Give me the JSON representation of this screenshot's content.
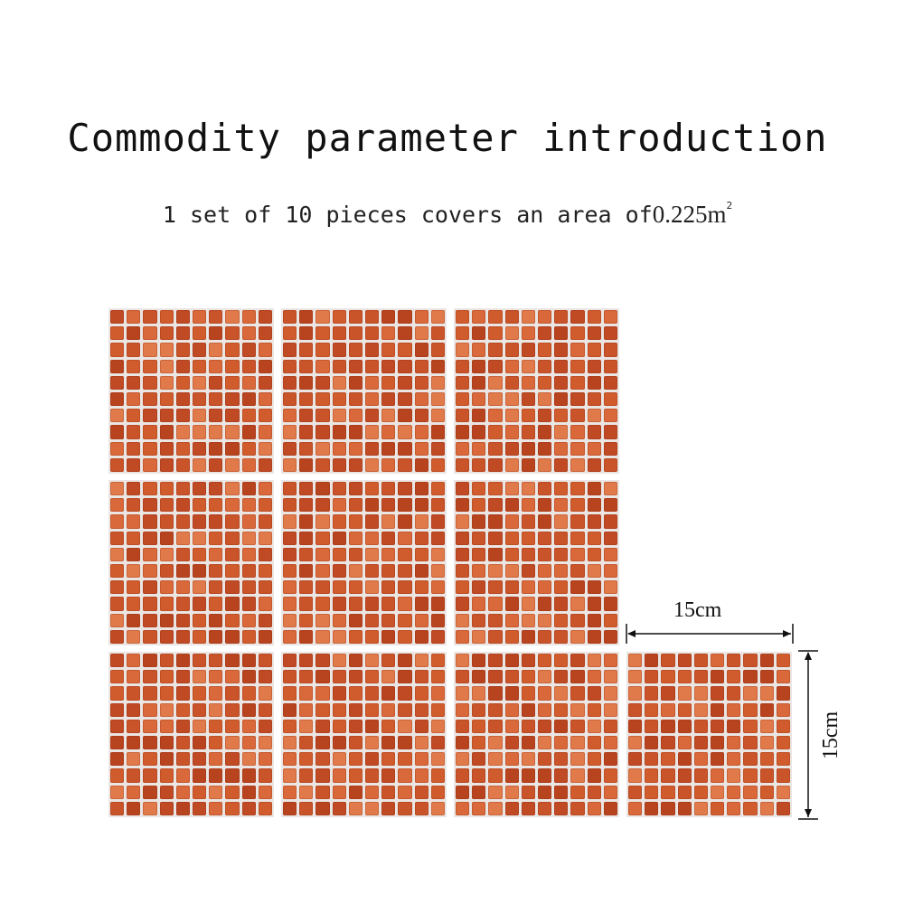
{
  "header": {
    "title": "Commodity parameter introduction",
    "subtitle_prefix": "1 set of 10 pieces covers an area of",
    "subtitle_value": "0.225m",
    "subtitle_superscript": "2"
  },
  "tiles": {
    "count_shown": 10,
    "color": "#c9542a",
    "grout_color": "#ebe6e3"
  },
  "dimensions": {
    "width_label": "15cm",
    "height_label": "15cm"
  }
}
